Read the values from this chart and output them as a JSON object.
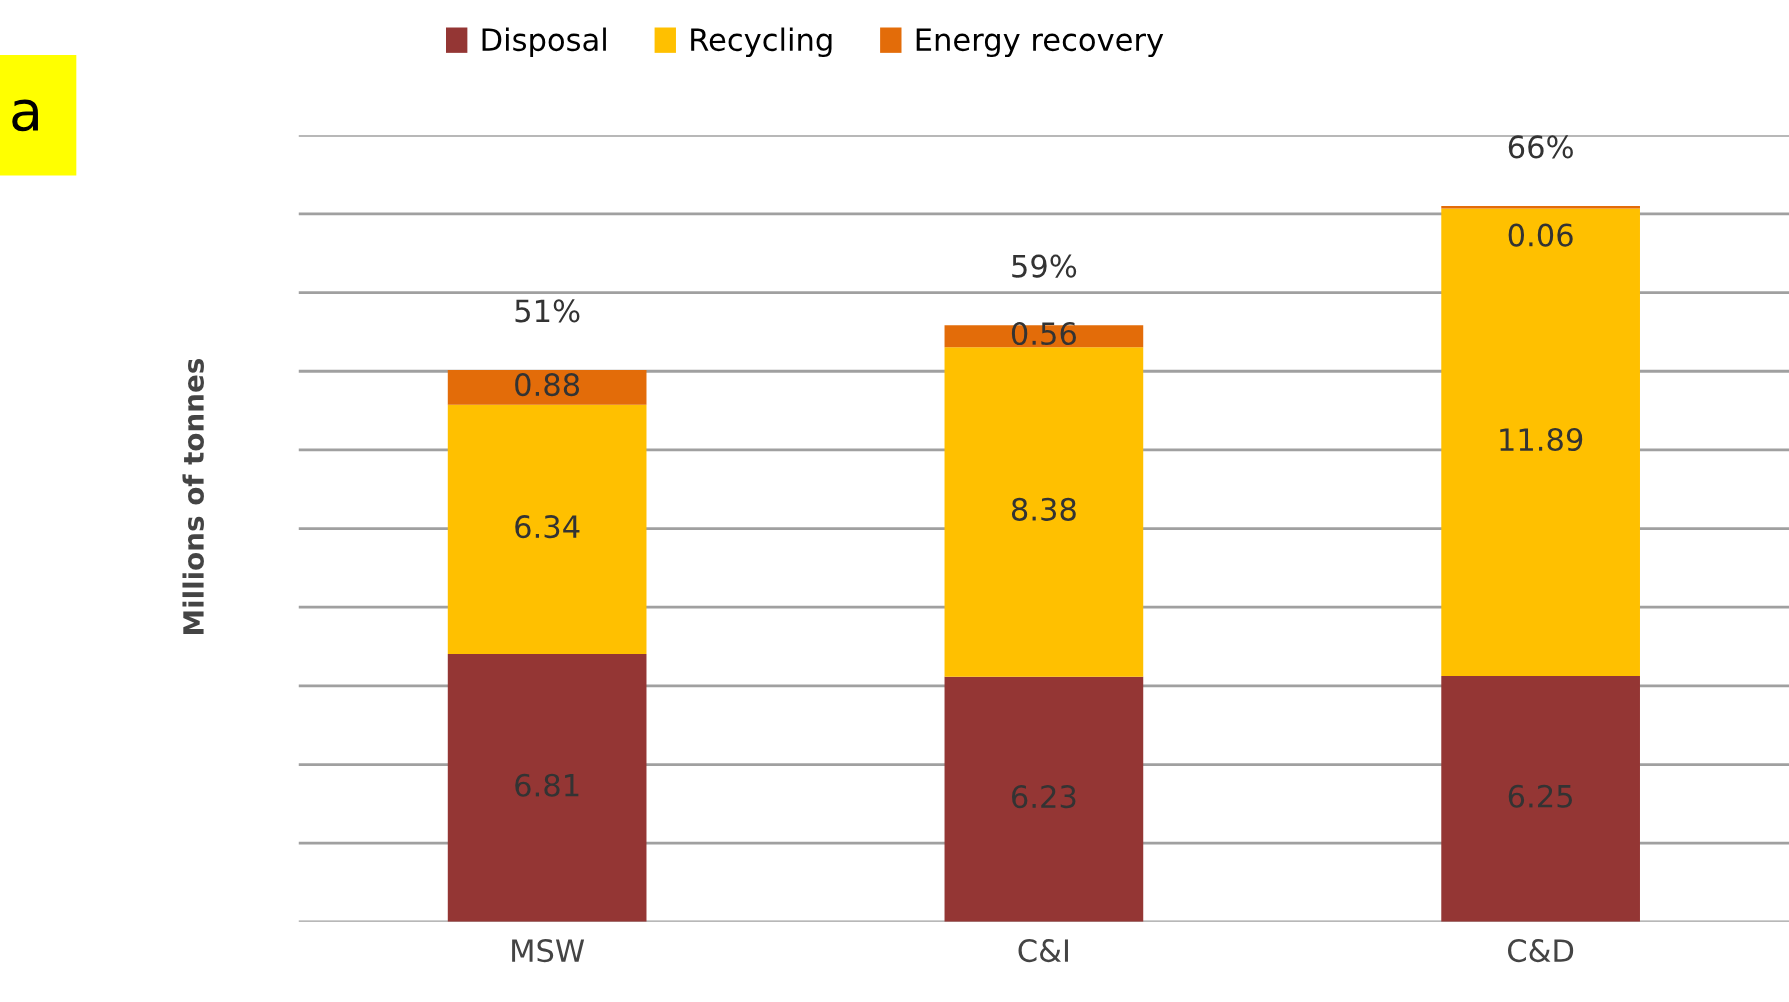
{
  "chart_data": {
    "type": "bar",
    "stacked": true,
    "ylabel": "Millions of tonnes",
    "categories": [
      "MSW",
      "C&I",
      "C&D"
    ],
    "series": [
      {
        "name": "Disposal",
        "color": "#943634",
        "values": [
          6.81,
          6.23,
          6.25
        ]
      },
      {
        "name": "Recycling",
        "color": "#ffc000",
        "values": [
          6.34,
          8.38,
          11.89
        ]
      },
      {
        "name": "Energy recovery",
        "color": "#e36c09",
        "values": [
          0.88,
          0.56,
          0.06
        ]
      }
    ],
    "data_labels": true,
    "ylim": [
      0,
      20
    ],
    "yticks": [
      {
        "value": 0,
        "label": null
      },
      {
        "value": 2,
        "label": null
      },
      {
        "value": 4,
        "label": null
      },
      {
        "value": 6,
        "label": null
      },
      {
        "value": 8,
        "label": null
      },
      {
        "value": 10,
        "label": null
      },
      {
        "value": 12,
        "label": null
      },
      {
        "value": 14,
        "label": null
      },
      {
        "value": 16,
        "label": null
      },
      {
        "value": 18,
        "label": null
      },
      {
        "value": 20,
        "label": null
      }
    ],
    "grid": "y",
    "legend": "top",
    "annotations": [
      "a",
      {
        "text": "51%",
        "x": "MSW",
        "y": 14.03
      },
      {
        "text": "59%",
        "x": "C&I",
        "y": 15.17
      },
      {
        "text": "66%",
        "x": "C&D",
        "y": 18.2
      }
    ]
  }
}
